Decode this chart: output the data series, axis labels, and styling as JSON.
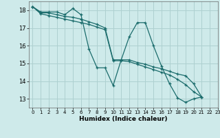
{
  "xlabel": "Humidex (Indice chaleur)",
  "bg_color": "#ceeaea",
  "grid_color": "#aed0d0",
  "line_color": "#1a6b6b",
  "xlim": [
    -0.5,
    23
  ],
  "ylim": [
    12.5,
    18.5
  ],
  "yticks": [
    13,
    14,
    15,
    16,
    17,
    18
  ],
  "xticks": [
    0,
    1,
    2,
    3,
    4,
    5,
    6,
    7,
    8,
    9,
    10,
    11,
    12,
    13,
    14,
    15,
    16,
    17,
    18,
    19,
    20,
    21,
    22,
    23
  ],
  "series": [
    [
      18.2,
      17.9,
      17.9,
      17.9,
      17.75,
      18.1,
      17.75,
      15.8,
      14.75,
      14.75,
      13.75,
      15.2,
      16.5,
      17.3,
      17.3,
      16.0,
      14.85,
      13.85,
      13.05,
      12.8,
      13.0,
      13.1
    ],
    [
      18.2,
      17.85,
      17.85,
      17.75,
      17.65,
      17.6,
      17.5,
      17.35,
      17.2,
      17.0,
      15.2,
      15.2,
      15.2,
      15.05,
      14.95,
      14.8,
      14.7,
      14.55,
      14.4,
      14.3,
      13.85,
      13.1
    ],
    [
      18.2,
      17.8,
      17.7,
      17.6,
      17.5,
      17.4,
      17.3,
      17.2,
      17.05,
      16.9,
      15.15,
      15.15,
      15.1,
      14.95,
      14.8,
      14.65,
      14.5,
      14.35,
      14.1,
      13.8,
      13.4,
      13.1
    ]
  ]
}
